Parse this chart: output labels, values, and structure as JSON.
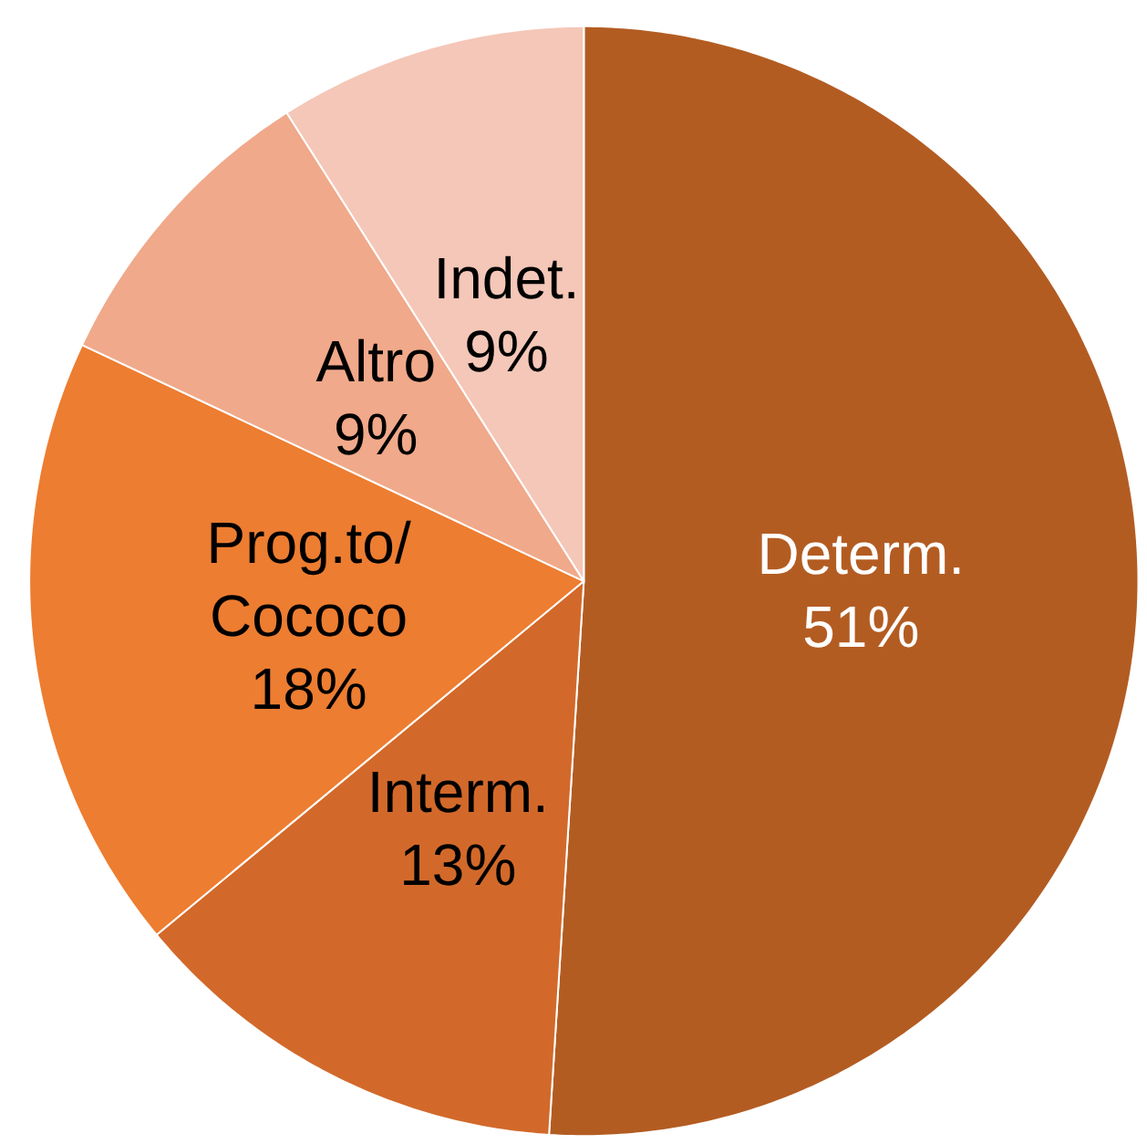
{
  "chart_data": {
    "type": "pie",
    "categories": [
      "Determ.",
      "Interm.",
      "Prog.to/Cococo",
      "Altro",
      "Indet."
    ],
    "values": [
      51,
      13,
      18,
      9,
      9
    ],
    "colors": [
      "#b35c22",
      "#d2692a",
      "#ed7d31",
      "#f0a98a",
      "#f4c7b8"
    ],
    "value_labels": [
      "51%",
      "13%",
      "18%",
      "9%",
      "9%"
    ]
  }
}
